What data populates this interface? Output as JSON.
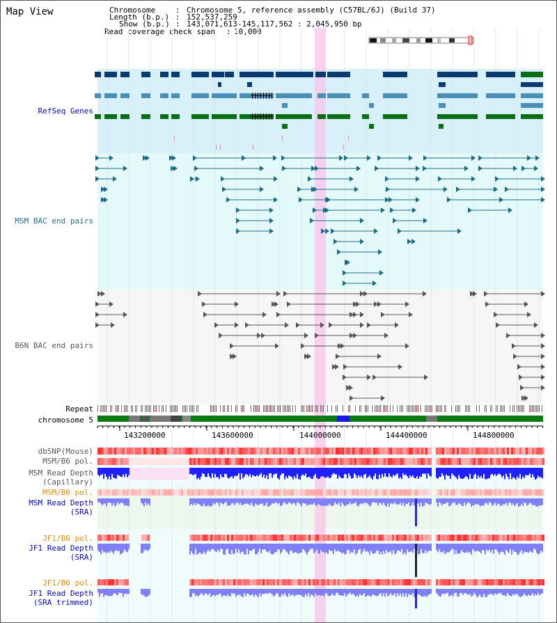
{
  "app": {
    "title": "Map View"
  },
  "info": {
    "chromosome_label": "Chromosome",
    "chromosome_value": "Chromosome 5, reference assembly (C57BL/6J) (Build 37)",
    "length_label": "Length (b.p.)",
    "length_value": "152,537,259",
    "show_label": "Show (b.p.)",
    "show_value": "143,071,613-145,117,562 : 2,045,950 bp",
    "coverage_label": "Read coverage check span",
    "coverage_value": "10,000"
  },
  "tracks": {
    "refseq": "RefSeq Genes",
    "msm_bac": "MSM BAC end pairs",
    "b6n_bac": "B6N BAC end pairs",
    "repeat": "Repeat",
    "chromosome": "chromosome 5",
    "dbsnp": "dbSNP(Mouse)",
    "msm_b6_pol": "MSM/B6 pol.",
    "msm_depth_cap_1": "MSM Read Depth",
    "msm_depth_cap_2": "(Capillary)",
    "msm_b6_pol2": "MSM/B6 pol.",
    "msm_depth_sra_1": "MSM Read Depth",
    "msm_depth_sra_2": "(SRA)",
    "jf1_b6_pol": "JF1/B6 pol.",
    "jf1_depth_sra_1": "JF1 Read Depth",
    "jf1_depth_sra_2": "(SRA)",
    "jf1_b6_pol2": "JF1/B6 pol.",
    "jf1_depth_trim_1": "JF1 Read Depth",
    "jf1_depth_trim_2": "(SRA trimmed)"
  },
  "scale": {
    "ticks": [
      "143200000",
      "143600000",
      "144000000",
      "144400000",
      "144800000"
    ]
  },
  "colors": {
    "refseq_bg": "#d8f0fa",
    "msm_bg": "#e4fafa",
    "b6n_bg": "#f6f6f6",
    "highlight": "#f8c8ec",
    "gene_dark": "#0b3b6e",
    "gene_mid": "#4a8fb8",
    "gene_green": "#0a6e14",
    "bac_msm": "#1d6b8a",
    "bac_b6n": "#555555",
    "label_blue": "#0000cc",
    "label_teal": "#1f6f8b",
    "label_gray": "#555555",
    "label_orange": "#e08a00",
    "pol_red": "#ff3333",
    "depth_blue": "#2020ff",
    "depth_light": "#7f7ff8"
  }
}
